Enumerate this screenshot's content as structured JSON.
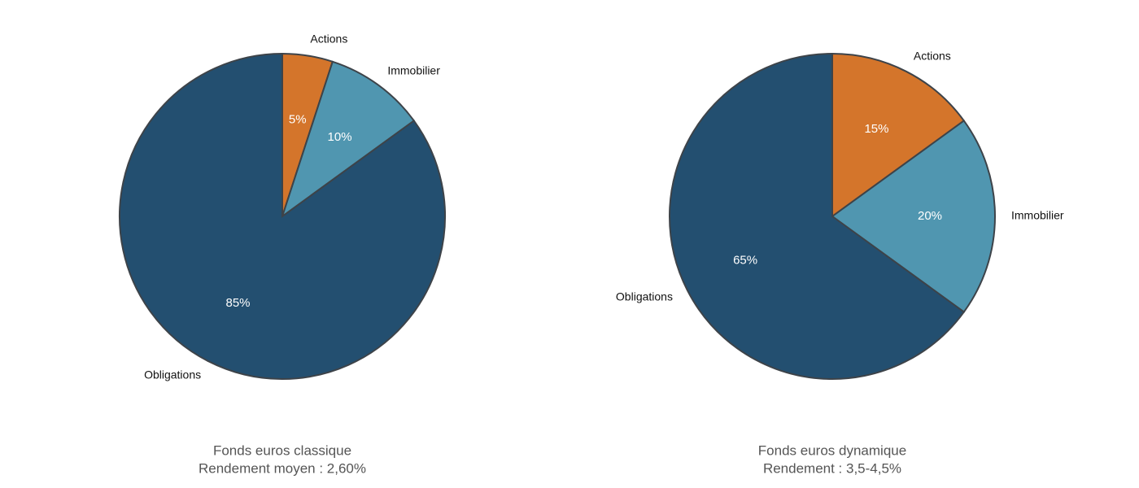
{
  "chart_data": [
    {
      "type": "pie",
      "title": "Fonds euros classique",
      "subtitle": "Rendement moyen : 2,60%",
      "categories": [
        "Actions",
        "Immobilier",
        "Obligations"
      ],
      "values": [
        5,
        10,
        85
      ],
      "value_labels": [
        "5%",
        "10%",
        "85%"
      ],
      "colors": [
        "#d4752b",
        "#5096b0",
        "#234f70"
      ]
    },
    {
      "type": "pie",
      "title": "Fonds euros dynamique",
      "subtitle": "Rendement : 3,5-4,5%",
      "categories": [
        "Actions",
        "Immobilier",
        "Obligations"
      ],
      "values": [
        15,
        20,
        65
      ],
      "value_labels": [
        "15%",
        "20%",
        "65%"
      ],
      "colors": [
        "#d4752b",
        "#5096b0",
        "#234f70"
      ]
    }
  ]
}
